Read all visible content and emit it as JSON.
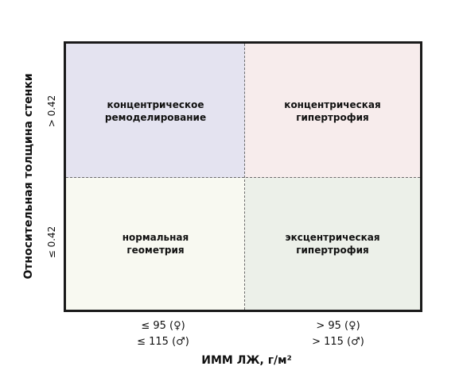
{
  "diagram": {
    "y_axis_label": "Относительная толщина стенки",
    "x_axis_label": "ИММ ЛЖ, г/м²",
    "y_ticks": {
      "upper": "> 0.42",
      "lower": "≤ 0.42"
    },
    "x_ticks": {
      "left": [
        "≤ 95 (♀)",
        "≤ 115 (♂)"
      ],
      "right": [
        "> 95 (♀)",
        "> 115 (♂)"
      ]
    },
    "quadrants": {
      "top_left": {
        "lines": [
          "концентрическое",
          "ремоделирование"
        ],
        "color": "#e4e3f0"
      },
      "top_right": {
        "lines": [
          "концентрическая",
          "гипертрофия"
        ],
        "color": "#f7ecec"
      },
      "bottom_left": {
        "lines": [
          "нормальная",
          "геометрия"
        ],
        "color": "#f8f9f1"
      },
      "bottom_right": {
        "lines": [
          "эксцентрическая",
          "гипертрофия"
        ],
        "color": "#ecf0e9"
      }
    },
    "colors": {
      "border": "#1a1a1a",
      "divider": "#6b6b6b"
    }
  }
}
